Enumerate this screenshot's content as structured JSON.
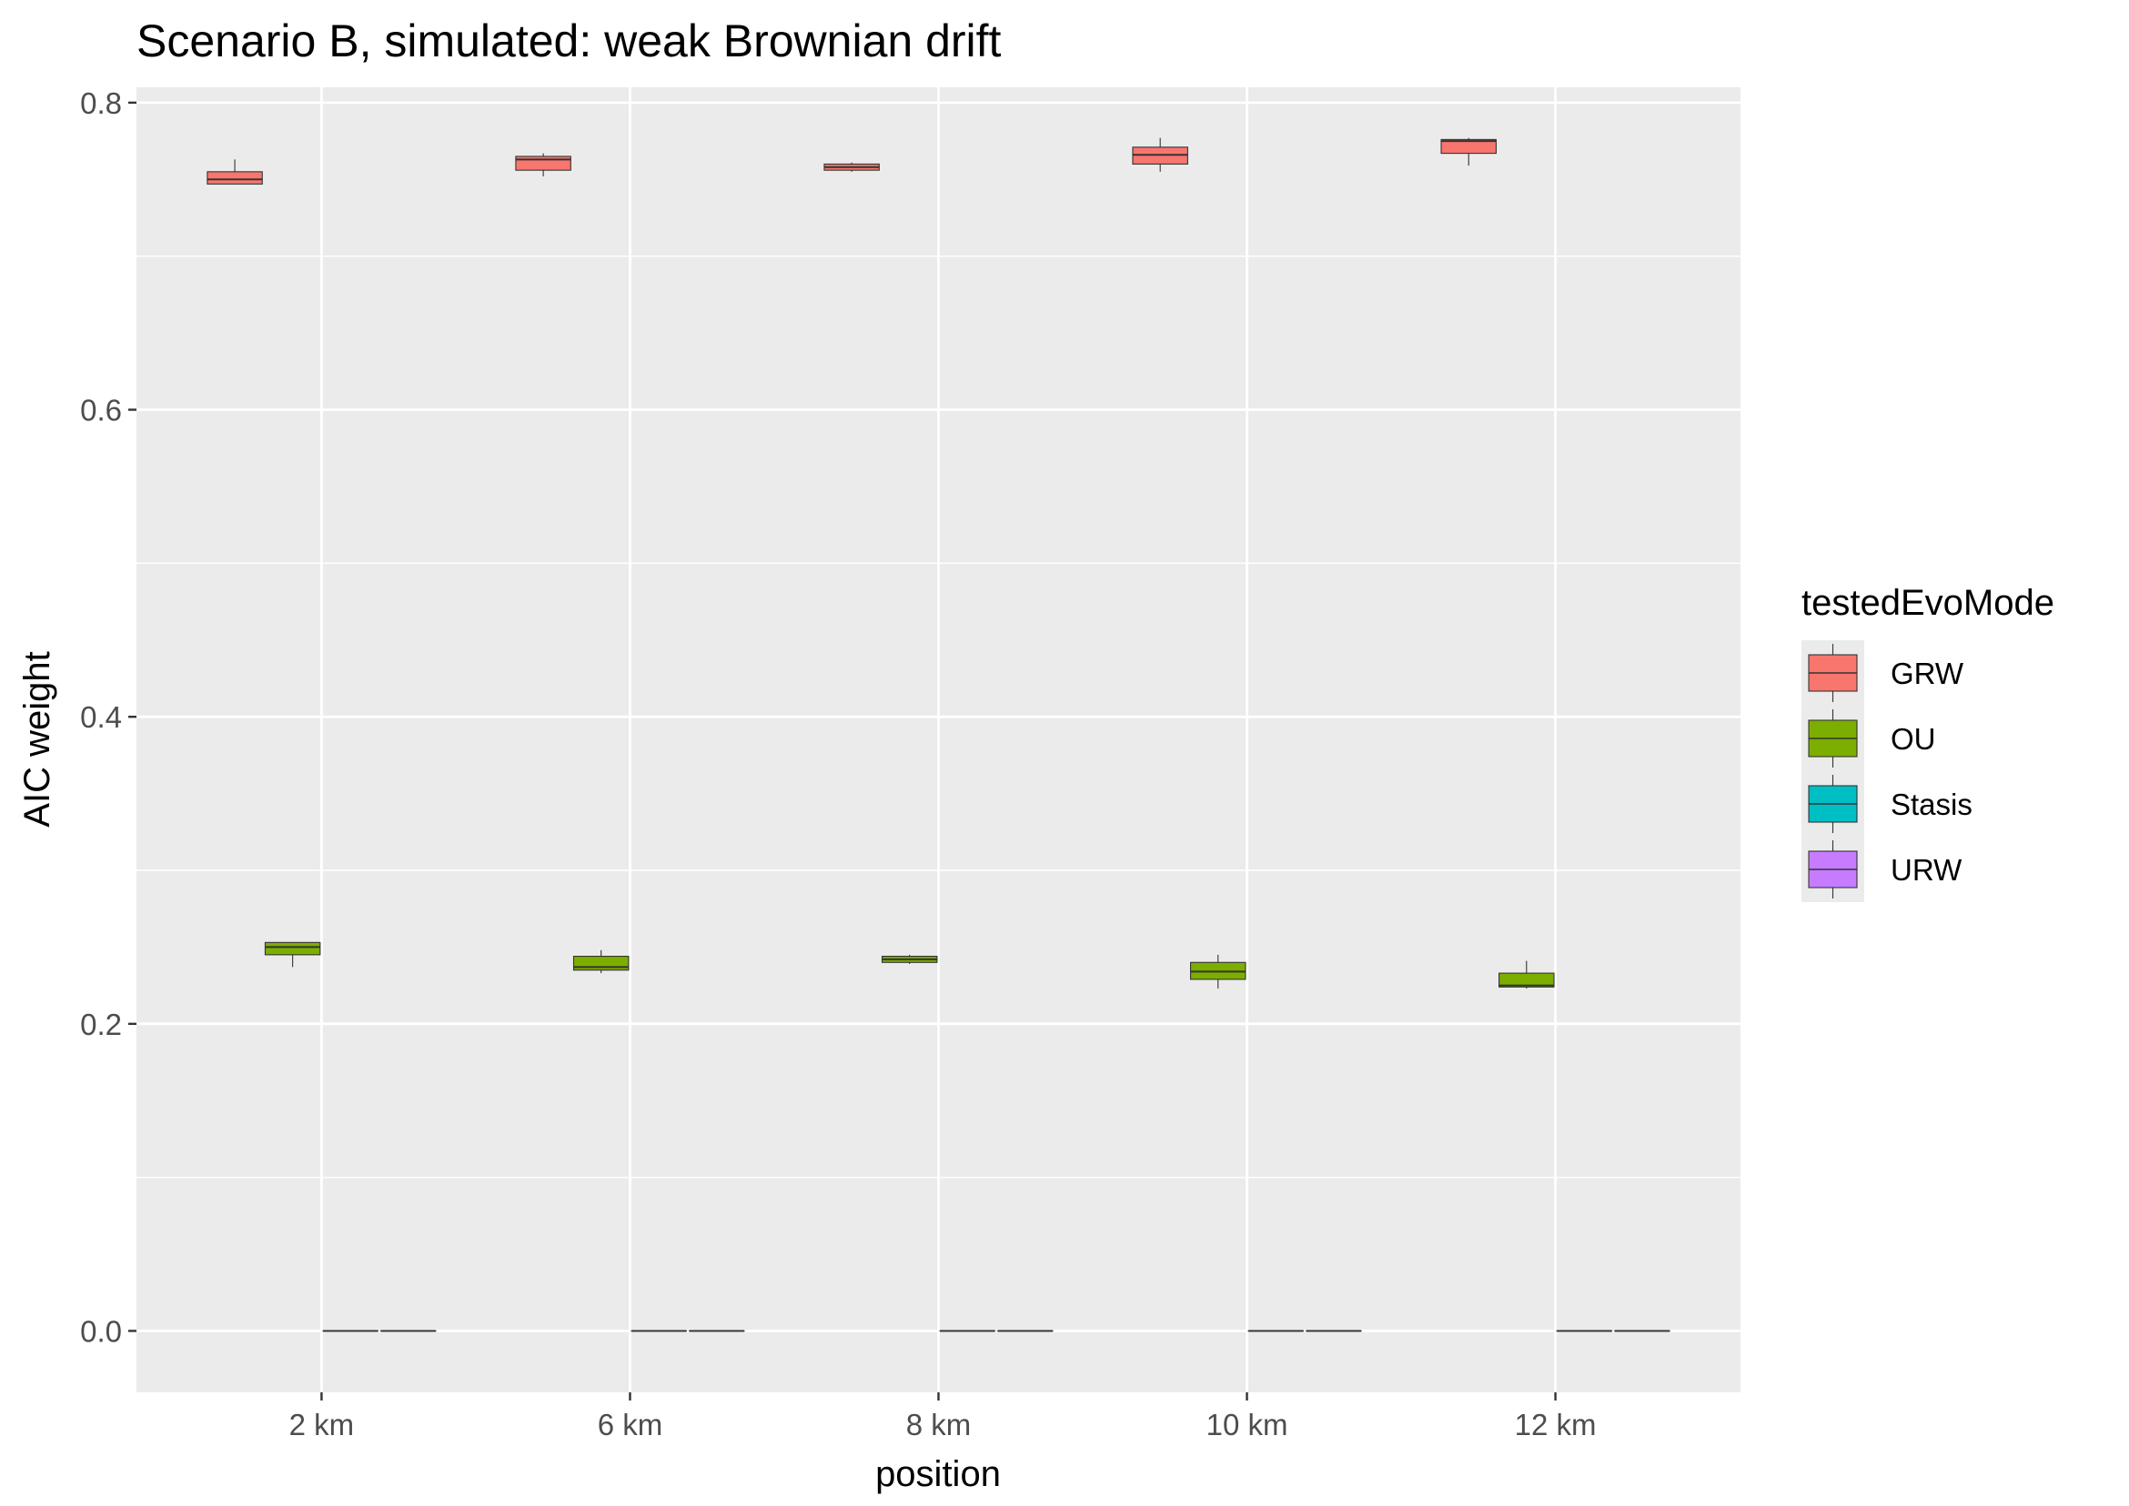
{
  "chart_data": {
    "type": "boxplot",
    "title": "Scenario B, simulated: weak Brownian drift",
    "xlabel": "position",
    "ylabel": "AIC weight",
    "categories": [
      "2 km",
      "6 km",
      "8 km",
      "10 km",
      "12 km"
    ],
    "ylim": [
      -0.04,
      0.81
    ],
    "yticks": [
      0.0,
      0.2,
      0.4,
      0.6,
      0.8
    ],
    "ytick_labels": [
      "0.0",
      "0.2",
      "0.4",
      "0.6",
      "0.8"
    ],
    "grid": true,
    "legend": {
      "title": "testedEvoMode",
      "position": "right"
    },
    "series": [
      {
        "name": "GRW",
        "color": "#F8766D",
        "boxes": [
          {
            "min": 0.747,
            "q1": 0.747,
            "median": 0.75,
            "q3": 0.755,
            "max": 0.763
          },
          {
            "min": 0.752,
            "q1": 0.756,
            "median": 0.763,
            "q3": 0.765,
            "max": 0.767
          },
          {
            "min": 0.755,
            "q1": 0.756,
            "median": 0.758,
            "q3": 0.76,
            "max": 0.761
          },
          {
            "min": 0.755,
            "q1": 0.76,
            "median": 0.766,
            "q3": 0.771,
            "max": 0.777
          },
          {
            "min": 0.759,
            "q1": 0.767,
            "median": 0.775,
            "q3": 0.776,
            "max": 0.777
          }
        ]
      },
      {
        "name": "OU",
        "color": "#7CAE00",
        "boxes": [
          {
            "min": 0.237,
            "q1": 0.245,
            "median": 0.25,
            "q3": 0.253,
            "max": 0.253
          },
          {
            "min": 0.233,
            "q1": 0.235,
            "median": 0.237,
            "q3": 0.244,
            "max": 0.248
          },
          {
            "min": 0.239,
            "q1": 0.24,
            "median": 0.242,
            "q3": 0.244,
            "max": 0.245
          },
          {
            "min": 0.223,
            "q1": 0.229,
            "median": 0.234,
            "q3": 0.24,
            "max": 0.245
          },
          {
            "min": 0.223,
            "q1": 0.224,
            "median": 0.225,
            "q3": 0.233,
            "max": 0.241
          }
        ]
      },
      {
        "name": "Stasis",
        "color": "#00BFC4",
        "boxes": [
          {
            "min": 0.0,
            "q1": 0.0,
            "median": 0.0,
            "q3": 0.0,
            "max": 0.0
          },
          {
            "min": 0.0,
            "q1": 0.0,
            "median": 0.0,
            "q3": 0.0,
            "max": 0.0
          },
          {
            "min": 0.0,
            "q1": 0.0,
            "median": 0.0,
            "q3": 0.0,
            "max": 0.0
          },
          {
            "min": 0.0,
            "q1": 0.0,
            "median": 0.0,
            "q3": 0.0,
            "max": 0.0
          },
          {
            "min": 0.0,
            "q1": 0.0,
            "median": 0.0,
            "q3": 0.0,
            "max": 0.0
          }
        ]
      },
      {
        "name": "URW",
        "color": "#C77CFF",
        "boxes": [
          {
            "min": 0.0,
            "q1": 0.0,
            "median": 0.0,
            "q3": 0.0,
            "max": 0.0
          },
          {
            "min": 0.0,
            "q1": 0.0,
            "median": 0.0,
            "q3": 0.0,
            "max": 0.0
          },
          {
            "min": 0.0,
            "q1": 0.0,
            "median": 0.0,
            "q3": 0.0,
            "max": 0.0
          },
          {
            "min": 0.0,
            "q1": 0.0,
            "median": 0.0,
            "q3": 0.0,
            "max": 0.0
          },
          {
            "min": 0.0,
            "q1": 0.0,
            "median": 0.0,
            "q3": 0.0,
            "max": 0.0
          }
        ]
      }
    ]
  }
}
